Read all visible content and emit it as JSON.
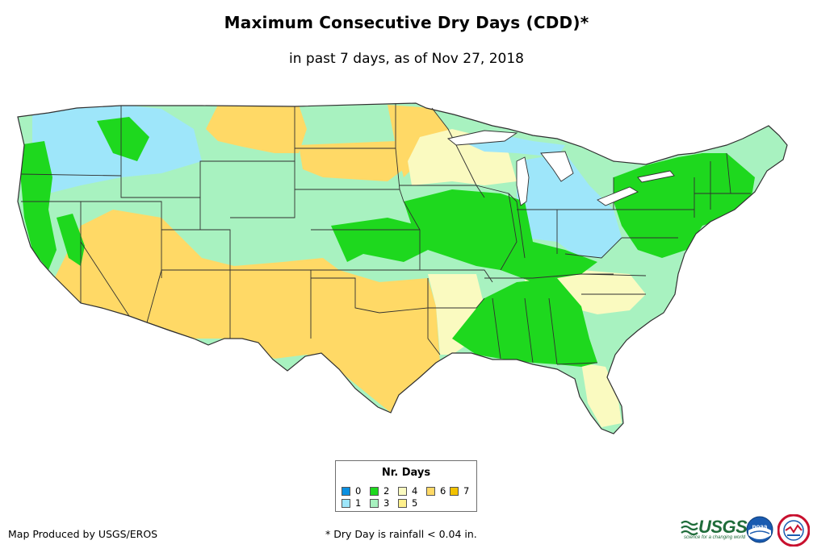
{
  "title": "Maximum Consecutive Dry Days (CDD)*",
  "subtitle": "in past 7 days, as of Nov 27, 2018",
  "legend": {
    "title": "Nr. Days",
    "items": [
      {
        "label": "0",
        "color": "#0a8fe0"
      },
      {
        "label": "1",
        "color": "#9ee6fa"
      },
      {
        "label": "2",
        "color": "#1ed81e"
      },
      {
        "label": "3",
        "color": "#a8f2c0"
      },
      {
        "label": "4",
        "color": "#fafac0"
      },
      {
        "label": "5",
        "color": "#fff08c"
      },
      {
        "label": "6",
        "color": "#ffd966"
      },
      {
        "label": "7",
        "color": "#f2c200"
      }
    ]
  },
  "footer": {
    "producer": "Map Produced by USGS/EROS",
    "note": "* Dry Day is rainfall < 0.04 in."
  },
  "logos": {
    "usgs_name": "USGS",
    "usgs_tagline": "science for a changing world",
    "noaa_name": "noaa"
  },
  "colors": {
    "state_border": "#303030",
    "background": "#ffffff"
  }
}
